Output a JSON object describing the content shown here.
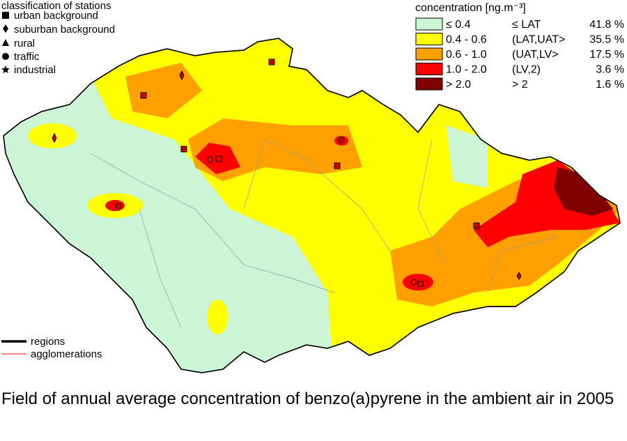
{
  "stations_legend": {
    "title": "classification of stations",
    "items": [
      "urban background",
      "suburban background",
      "rural",
      "traffic",
      "industrial"
    ]
  },
  "concentration_legend": {
    "title": "concentration [ng.m⁻³]",
    "classes": [
      {
        "range": "≤ 0.4",
        "label": "≤ LAT",
        "share": "41.8 %",
        "color": "#ccf5d5"
      },
      {
        "range": "0.4 - 0.6",
        "label": "(LAT,UAT>",
        "share": "35.5 %",
        "color": "#ffff00"
      },
      {
        "range": "0.6 - 1.0",
        "label": "(UAT,LV>",
        "share": "17.5 %",
        "color": "#ffa000"
      },
      {
        "range": "1.0 - 2.0",
        "label": "(LV,2)",
        "share": "3.6 %",
        "color": "#ff0000"
      },
      {
        "range": "> 2.0",
        "label": "> 2",
        "share": "1.6 %",
        "color": "#800000"
      }
    ]
  },
  "lines_legend": {
    "regions": "regions",
    "agglomerations": "agglomerations"
  },
  "caption": "Field of annual average concentration of benzo(a)pyrene in the ambient air in 2005"
}
